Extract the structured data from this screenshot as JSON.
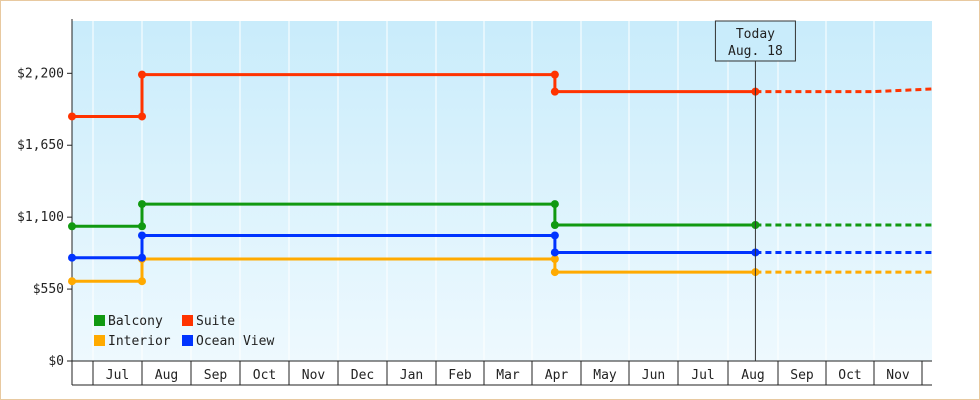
{
  "chart_data": {
    "type": "line",
    "step": true,
    "title": "",
    "xlabel": "",
    "ylabel": "",
    "ylim": [
      0,
      2600
    ],
    "y_ticks": [
      0,
      550,
      1100,
      1650,
      2200
    ],
    "y_tick_labels": [
      "$0",
      "$550",
      "$1,100",
      "$1,650",
      "$2,200"
    ],
    "x_ticks": [
      "Jul",
      "Aug",
      "Sep",
      "Oct",
      "Nov",
      "Dec",
      "Jan",
      "Feb",
      "Mar",
      "Apr",
      "May",
      "Jun",
      "Jul",
      "Aug",
      "Sep",
      "Oct",
      "Nov"
    ],
    "x_range": [
      "2023-06-15",
      "2024-11-30"
    ],
    "grid": true,
    "legend_position": "bottom-left",
    "today_marker": {
      "date": "2024-08-18",
      "label_line1": "Today",
      "label_line2": "Aug. 18"
    },
    "series": [
      {
        "name": "Balcony",
        "color": "#119911",
        "points": [
          {
            "date": "2023-06-15",
            "value": 1030
          },
          {
            "date": "2023-08-01",
            "value": 1030
          },
          {
            "date": "2023-08-01",
            "value": 1200
          },
          {
            "date": "2024-04-15",
            "value": 1200
          },
          {
            "date": "2024-04-15",
            "value": 1040
          },
          {
            "date": "2024-08-18",
            "value": 1040
          }
        ],
        "projected": [
          {
            "date": "2024-08-18",
            "value": 1040
          },
          {
            "date": "2024-11-30",
            "value": 1040
          }
        ]
      },
      {
        "name": "Suite",
        "color": "#ff3300",
        "points": [
          {
            "date": "2023-06-15",
            "value": 1870
          },
          {
            "date": "2023-08-01",
            "value": 1870
          },
          {
            "date": "2023-08-01",
            "value": 2190
          },
          {
            "date": "2024-04-15",
            "value": 2190
          },
          {
            "date": "2024-04-15",
            "value": 2060
          },
          {
            "date": "2024-08-18",
            "value": 2060
          }
        ],
        "projected": [
          {
            "date": "2024-08-18",
            "value": 2060
          },
          {
            "date": "2024-11-01",
            "value": 2060
          },
          {
            "date": "2024-11-30",
            "value": 2080
          }
        ]
      },
      {
        "name": "Interior",
        "color": "#ffaa00",
        "points": [
          {
            "date": "2023-06-15",
            "value": 610
          },
          {
            "date": "2023-08-01",
            "value": 610
          },
          {
            "date": "2023-08-01",
            "value": 780
          },
          {
            "date": "2024-04-15",
            "value": 780
          },
          {
            "date": "2024-04-15",
            "value": 680
          },
          {
            "date": "2024-08-18",
            "value": 680
          }
        ],
        "projected": [
          {
            "date": "2024-08-18",
            "value": 680
          },
          {
            "date": "2024-11-30",
            "value": 680
          }
        ]
      },
      {
        "name": "Ocean View",
        "color": "#0033ff",
        "points": [
          {
            "date": "2023-06-15",
            "value": 790
          },
          {
            "date": "2023-08-01",
            "value": 790
          },
          {
            "date": "2023-08-01",
            "value": 960
          },
          {
            "date": "2024-04-15",
            "value": 960
          },
          {
            "date": "2024-04-15",
            "value": 830
          },
          {
            "date": "2024-08-18",
            "value": 830
          }
        ],
        "projected": [
          {
            "date": "2024-08-18",
            "value": 830
          },
          {
            "date": "2024-11-30",
            "value": 830
          }
        ]
      }
    ]
  }
}
